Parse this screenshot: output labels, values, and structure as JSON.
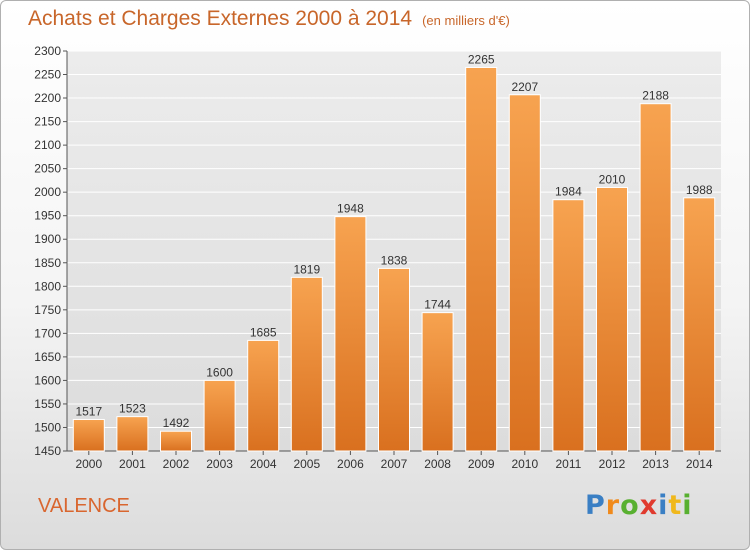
{
  "header": {
    "title": "Achats et Charges Externes 2000 à 2014",
    "unit": "(en milliers d'€)"
  },
  "footer": {
    "place": "VALENCE",
    "logo": [
      "P",
      "r",
      "o",
      "x",
      "i",
      "t",
      "i"
    ],
    "logo_colors": [
      "#3a7fc4",
      "#f08a1c",
      "#58b030",
      "#e03a2e",
      "#3a7fc4",
      "#f0b81c",
      "#58b030"
    ]
  },
  "colors": {
    "bar_top": "#f7a350",
    "bar_bottom": "#d9701f",
    "title": "#c8662a",
    "grid": "#ffffff"
  },
  "chart_data": {
    "type": "bar",
    "title": "Achats et Charges Externes 2000 à 2014",
    "subtitle": "(en milliers d'€)",
    "categories": [
      "2000",
      "2001",
      "2002",
      "2003",
      "2004",
      "2005",
      "2006",
      "2007",
      "2008",
      "2009",
      "2010",
      "2011",
      "2012",
      "2013",
      "2014"
    ],
    "values": [
      1517,
      1523,
      1492,
      1600,
      1685,
      1819,
      1948,
      1838,
      1744,
      2265,
      2207,
      1984,
      2010,
      2188,
      1988
    ],
    "ylim": [
      1450,
      2300
    ],
    "yticks": [
      1450,
      1500,
      1550,
      1600,
      1650,
      1700,
      1750,
      1800,
      1850,
      1900,
      1950,
      2000,
      2050,
      2100,
      2150,
      2200,
      2250,
      2300
    ],
    "grid": true,
    "data_labels": true
  }
}
